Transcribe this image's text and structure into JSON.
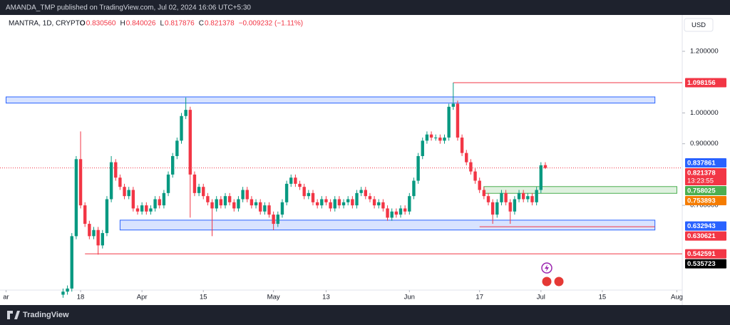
{
  "header": {
    "title": "AMANDA_TMP published on TradingView.com, Jul 02, 2024 16:06 UTC+5:30"
  },
  "legend": {
    "symbol": "MANTRA, 1D, CRYPTO",
    "items": [
      {
        "prefix": "O",
        "text": "0.830560"
      },
      {
        "prefix": "H",
        "text": "0.840026"
      },
      {
        "prefix": "L",
        "text": "0.817876"
      },
      {
        "prefix": "C",
        "text": "0.821378"
      }
    ],
    "change": "−0.009232 (−1.11%)"
  },
  "currency": "USD",
  "footer": {
    "brand": "TradingView"
  },
  "chart_data": {
    "type": "candlestick",
    "up_color": "#089981",
    "down_color": "#f23645",
    "x": [
      "2024-03-14",
      "2024-03-15",
      "2024-03-16",
      "2024-03-17",
      "2024-03-18",
      "2024-03-19",
      "2024-03-20",
      "2024-03-21",
      "2024-03-22",
      "2024-03-23",
      "2024-03-24",
      "2024-03-25",
      "2024-03-26",
      "2024-03-27",
      "2024-03-28",
      "2024-03-29",
      "2024-03-30",
      "2024-03-31",
      "2024-04-01",
      "2024-04-02",
      "2024-04-03",
      "2024-04-04",
      "2024-04-05",
      "2024-04-06",
      "2024-04-07",
      "2024-04-08",
      "2024-04-09",
      "2024-04-10",
      "2024-04-11",
      "2024-04-12",
      "2024-04-13",
      "2024-04-14",
      "2024-04-15",
      "2024-04-16",
      "2024-04-17",
      "2024-04-18",
      "2024-04-19",
      "2024-04-20",
      "2024-04-21",
      "2024-04-22",
      "2024-04-23",
      "2024-04-24",
      "2024-04-25",
      "2024-04-26",
      "2024-04-27",
      "2024-04-28",
      "2024-04-29",
      "2024-04-30",
      "2024-05-01",
      "2024-05-02",
      "2024-05-03",
      "2024-05-04",
      "2024-05-05",
      "2024-05-06",
      "2024-05-07",
      "2024-05-08",
      "2024-05-09",
      "2024-05-10",
      "2024-05-11",
      "2024-05-12",
      "2024-05-13",
      "2024-05-14",
      "2024-05-15",
      "2024-05-16",
      "2024-05-17",
      "2024-05-18",
      "2024-05-19",
      "2024-05-20",
      "2024-05-21",
      "2024-05-22",
      "2024-05-23",
      "2024-05-24",
      "2024-05-25",
      "2024-05-26",
      "2024-05-27",
      "2024-05-28",
      "2024-05-29",
      "2024-05-30",
      "2024-05-31",
      "2024-06-01",
      "2024-06-02",
      "2024-06-03",
      "2024-06-04",
      "2024-06-05",
      "2024-06-06",
      "2024-06-07",
      "2024-06-08",
      "2024-06-09",
      "2024-06-10",
      "2024-06-11",
      "2024-06-12",
      "2024-06-13",
      "2024-06-14",
      "2024-06-15",
      "2024-06-16",
      "2024-06-17",
      "2024-06-18",
      "2024-06-19",
      "2024-06-20",
      "2024-06-21",
      "2024-06-22",
      "2024-06-23",
      "2024-06-24",
      "2024-06-25",
      "2024-06-26",
      "2024-06-27",
      "2024-06-28",
      "2024-06-29",
      "2024-06-30",
      "2024-07-01",
      "2024-07-02"
    ],
    "open": [
      0.41,
      0.42,
      0.43,
      0.6,
      0.85,
      0.7,
      0.64,
      0.6,
      0.62,
      0.57,
      0.61,
      0.72,
      0.84,
      0.79,
      0.76,
      0.73,
      0.75,
      0.69,
      0.68,
      0.7,
      0.68,
      0.69,
      0.72,
      0.7,
      0.74,
      0.8,
      0.86,
      0.91,
      0.99,
      1.01,
      0.8,
      0.74,
      0.76,
      0.73,
      0.71,
      0.69,
      0.72,
      0.7,
      0.73,
      0.71,
      0.69,
      0.72,
      0.75,
      0.72,
      0.7,
      0.71,
      0.68,
      0.7,
      0.67,
      0.64,
      0.67,
      0.71,
      0.77,
      0.79,
      0.77,
      0.76,
      0.73,
      0.74,
      0.71,
      0.7,
      0.72,
      0.71,
      0.69,
      0.72,
      0.7,
      0.71,
      0.72,
      0.7,
      0.74,
      0.75,
      0.73,
      0.72,
      0.7,
      0.71,
      0.69,
      0.66,
      0.68,
      0.67,
      0.69,
      0.68,
      0.73,
      0.78,
      0.86,
      0.91,
      0.93,
      0.92,
      0.92,
      0.91,
      0.92,
      1.02,
      1.03,
      0.92,
      0.87,
      0.84,
      0.81,
      0.78,
      0.75,
      0.73,
      0.71,
      0.67,
      0.71,
      0.74,
      0.71,
      0.68,
      0.72,
      0.74,
      0.72,
      0.73,
      0.71,
      0.75,
      0.83056
    ],
    "high": [
      0.43,
      0.44,
      0.61,
      0.86,
      0.94,
      0.71,
      0.65,
      0.63,
      0.63,
      0.62,
      0.73,
      0.86,
      0.85,
      0.8,
      0.77,
      0.76,
      0.76,
      0.7,
      0.71,
      0.71,
      0.7,
      0.73,
      0.73,
      0.75,
      0.81,
      0.87,
      0.92,
      1.0,
      1.05,
      1.02,
      0.81,
      0.77,
      0.77,
      0.74,
      0.72,
      0.73,
      0.73,
      0.74,
      0.74,
      0.72,
      0.73,
      0.76,
      0.76,
      0.73,
      0.72,
      0.72,
      0.71,
      0.71,
      0.68,
      0.68,
      0.72,
      0.78,
      0.8,
      0.8,
      0.78,
      0.77,
      0.75,
      0.75,
      0.72,
      0.73,
      0.73,
      0.72,
      0.73,
      0.73,
      0.72,
      0.73,
      0.73,
      0.75,
      0.76,
      0.76,
      0.74,
      0.73,
      0.72,
      0.72,
      0.7,
      0.69,
      0.69,
      0.7,
      0.7,
      0.74,
      0.79,
      0.87,
      0.92,
      0.94,
      0.94,
      0.93,
      0.93,
      0.93,
      1.03,
      1.098156,
      1.04,
      0.93,
      0.88,
      0.85,
      0.82,
      0.79,
      0.76,
      0.74,
      0.72,
      0.72,
      0.75,
      0.75,
      0.72,
      0.73,
      0.75,
      0.75,
      0.74,
      0.74,
      0.76,
      0.84,
      0.840026
    ],
    "low": [
      0.4,
      0.41,
      0.42,
      0.59,
      0.69,
      0.63,
      0.59,
      0.59,
      0.54,
      0.56,
      0.6,
      0.71,
      0.78,
      0.75,
      0.72,
      0.72,
      0.68,
      0.67,
      0.67,
      0.67,
      0.67,
      0.68,
      0.69,
      0.69,
      0.73,
      0.79,
      0.85,
      0.9,
      0.98,
      0.66,
      0.73,
      0.73,
      0.72,
      0.7,
      0.6,
      0.68,
      0.69,
      0.69,
      0.7,
      0.68,
      0.68,
      0.71,
      0.71,
      0.69,
      0.69,
      0.67,
      0.67,
      0.66,
      0.62,
      0.63,
      0.66,
      0.7,
      0.76,
      0.76,
      0.75,
      0.72,
      0.72,
      0.7,
      0.69,
      0.69,
      0.7,
      0.68,
      0.68,
      0.69,
      0.69,
      0.7,
      0.69,
      0.69,
      0.73,
      0.72,
      0.71,
      0.69,
      0.69,
      0.68,
      0.65,
      0.65,
      0.66,
      0.66,
      0.67,
      0.67,
      0.72,
      0.77,
      0.85,
      0.9,
      0.91,
      0.91,
      0.9,
      0.9,
      0.91,
      1.01,
      0.91,
      0.86,
      0.83,
      0.8,
      0.77,
      0.74,
      0.72,
      0.7,
      0.64,
      0.66,
      0.7,
      0.7,
      0.64,
      0.67,
      0.71,
      0.71,
      0.71,
      0.7,
      0.7,
      0.74,
      0.817876
    ],
    "close": [
      0.42,
      0.43,
      0.6,
      0.85,
      0.7,
      0.64,
      0.6,
      0.62,
      0.57,
      0.61,
      0.72,
      0.84,
      0.79,
      0.76,
      0.73,
      0.75,
      0.69,
      0.68,
      0.7,
      0.68,
      0.69,
      0.72,
      0.7,
      0.74,
      0.8,
      0.86,
      0.91,
      0.99,
      1.01,
      0.8,
      0.74,
      0.76,
      0.73,
      0.71,
      0.69,
      0.72,
      0.7,
      0.73,
      0.71,
      0.69,
      0.72,
      0.75,
      0.72,
      0.7,
      0.71,
      0.68,
      0.7,
      0.67,
      0.64,
      0.67,
      0.71,
      0.77,
      0.79,
      0.77,
      0.76,
      0.73,
      0.74,
      0.71,
      0.7,
      0.72,
      0.71,
      0.69,
      0.72,
      0.7,
      0.71,
      0.72,
      0.7,
      0.74,
      0.75,
      0.73,
      0.72,
      0.7,
      0.71,
      0.69,
      0.66,
      0.68,
      0.67,
      0.69,
      0.68,
      0.73,
      0.78,
      0.86,
      0.91,
      0.93,
      0.92,
      0.92,
      0.91,
      0.92,
      1.02,
      1.03,
      0.92,
      0.87,
      0.84,
      0.81,
      0.78,
      0.75,
      0.73,
      0.71,
      0.67,
      0.71,
      0.74,
      0.71,
      0.68,
      0.72,
      0.74,
      0.72,
      0.73,
      0.71,
      0.75,
      0.83,
      0.821378
    ],
    "ylim": [
      0.425,
      1.318
    ],
    "yticks": [
      {
        "value": 1.2,
        "label": "1.200000"
      },
      {
        "value": 1.0,
        "label": "1.000000"
      },
      {
        "value": 0.9,
        "label": "0.900000"
      },
      {
        "value": 0.7,
        "label": "0.700000"
      }
    ],
    "xticks": [
      {
        "value": "2024-03-01",
        "label": "ar"
      },
      {
        "value": "2024-03-18",
        "label": "18"
      },
      {
        "value": "2024-04-01",
        "label": "Apr"
      },
      {
        "value": "2024-04-15",
        "label": "15"
      },
      {
        "value": "2024-05-01",
        "label": "May"
      },
      {
        "value": "2024-05-13",
        "label": "13"
      },
      {
        "value": "2024-06-01",
        "label": "Jun"
      },
      {
        "value": "2024-06-17",
        "label": "17"
      },
      {
        "value": "2024-07-01",
        "label": "Jul"
      },
      {
        "value": "2024-07-15",
        "label": "15"
      },
      {
        "value": "2024-08-01",
        "label": "Aug"
      }
    ],
    "zones": [
      {
        "high": 1.052,
        "low": 1.032,
        "start": "2024-03-01",
        "end": "2024-07-27",
        "color": "#2962ff"
      },
      {
        "high": 0.652,
        "low": 0.62,
        "start": "2024-03-27",
        "end": "2024-07-27",
        "color": "#2962ff"
      },
      {
        "high": 0.761,
        "low": 0.739,
        "start": "2024-06-18",
        "end": "2024-08-01",
        "color": "#4caf50"
      }
    ],
    "price_labels": [
      {
        "value": 1.098156,
        "color": "#f23645",
        "line_start": "2024-06-11"
      },
      {
        "value": 0.837861,
        "color": "#2962ff"
      },
      {
        "value": 0.821378,
        "color": "#f23645",
        "countdown": "13:23:55",
        "dotted": true
      },
      {
        "value": 0.758025,
        "color": "#4caf50"
      },
      {
        "value": 0.753893,
        "color": "#f57c00"
      },
      {
        "value": 0.632943,
        "color": "#2962ff"
      },
      {
        "value": 0.630621,
        "color": "#f23645",
        "line_start": "2024-06-17",
        "line_end": "2024-07-27"
      },
      {
        "value": 0.542591,
        "color": "#f23645",
        "line_start": "2024-03-19"
      },
      {
        "value": 0.535723,
        "color": "#000000"
      }
    ]
  }
}
